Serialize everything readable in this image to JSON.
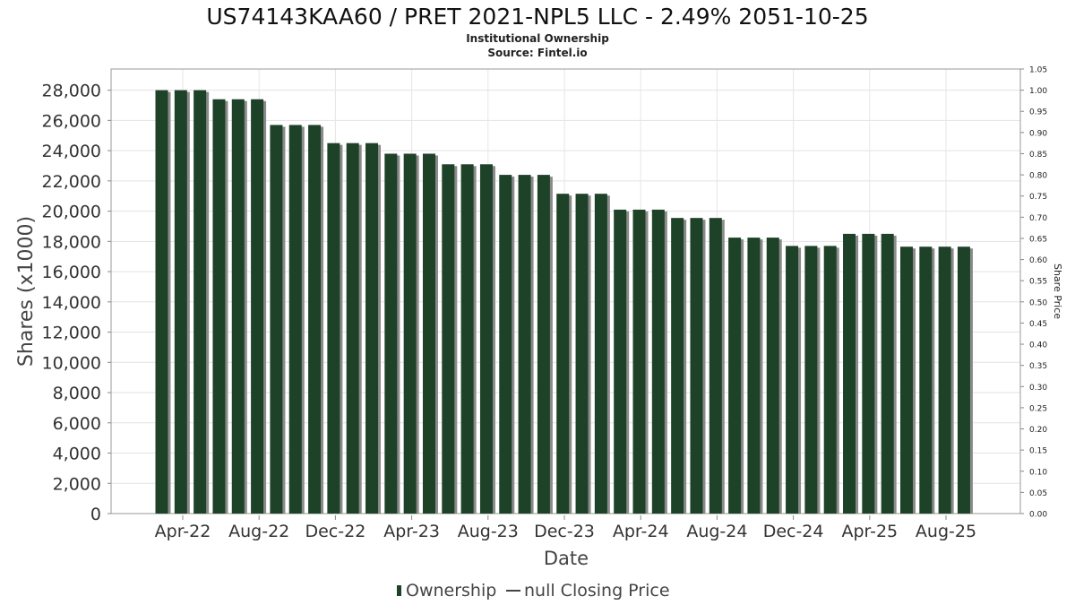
{
  "chart_data": {
    "type": "bar",
    "title": "US74143KAA60 / PRET 2021-NPL5 LLC - 2.49% 2051-10-25",
    "subtitle_lines": [
      "Institutional Ownership",
      "Source: Fintel.io"
    ],
    "xlabel": "Date",
    "ylabel": "Shares (x1000)",
    "y2label": "Share Price",
    "ylim": [
      0,
      29400
    ],
    "y2lim": [
      0,
      1.05
    ],
    "y_ticks": [
      "0",
      "2,000",
      "4,000",
      "6,000",
      "8,000",
      "10,000",
      "12,000",
      "14,000",
      "16,000",
      "18,000",
      "20,000",
      "22,000",
      "24,000",
      "26,000",
      "28,000"
    ],
    "y2_ticks": [
      "0.00",
      "0.05",
      "0.10",
      "0.15",
      "0.20",
      "0.25",
      "0.30",
      "0.35",
      "0.40",
      "0.45",
      "0.50",
      "0.55",
      "0.60",
      "0.65",
      "0.70",
      "0.75",
      "0.80",
      "0.85",
      "0.90",
      "0.95",
      "1.00",
      "1.05"
    ],
    "x_ticks": [
      "Apr-22",
      "Aug-22",
      "Dec-22",
      "Apr-23",
      "Aug-23",
      "Dec-23",
      "Apr-24",
      "Aug-24",
      "Dec-24",
      "Apr-25",
      "Aug-25"
    ],
    "grid": true,
    "legend_position": "bottom",
    "series": [
      {
        "name": "Ownership",
        "color": "#1e4228",
        "values": [
          28000,
          28000,
          28000,
          27400,
          27400,
          27400,
          25700,
          25700,
          25700,
          24500,
          24500,
          24500,
          23800,
          23800,
          23800,
          23100,
          23100,
          23100,
          22400,
          22400,
          22400,
          21150,
          21150,
          21150,
          20100,
          20100,
          20100,
          19550,
          19550,
          19550,
          18250,
          18250,
          18250,
          17700,
          17700,
          17700,
          18500,
          18500,
          18500,
          17650,
          17650,
          17650,
          17650
        ]
      }
    ],
    "legend": [
      {
        "label": "Ownership",
        "color": "#1e4228",
        "kind": "bar"
      },
      {
        "label": "null Closing Price",
        "color": "#444444",
        "kind": "line"
      }
    ]
  }
}
